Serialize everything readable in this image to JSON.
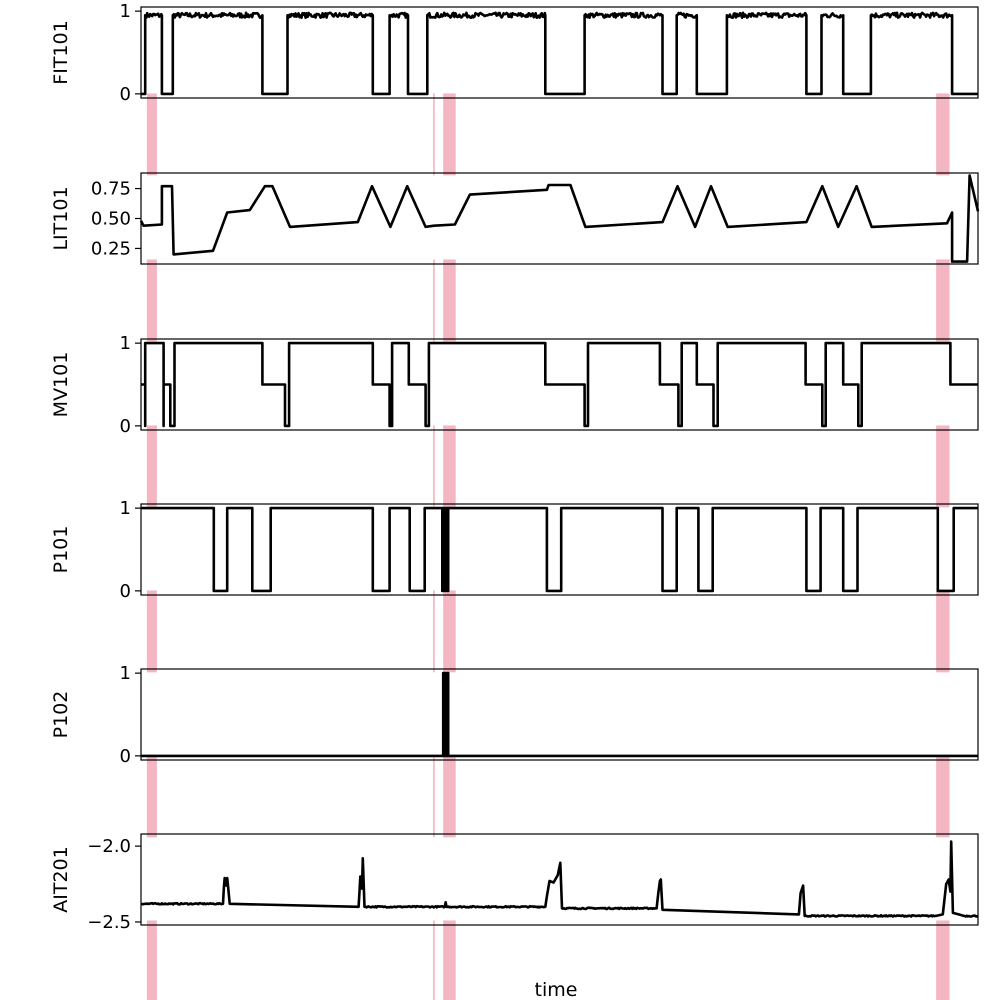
{
  "chart_data": {
    "type": "line",
    "xlabel": "time",
    "x_range": [
      0,
      1000
    ],
    "colors": {
      "line": "#000000",
      "anomaly": "#f4b6c2",
      "frame": "#000000"
    },
    "anomaly_windows": [
      [
        7,
        19
      ],
      [
        349,
        351
      ],
      [
        361,
        376
      ],
      [
        950,
        966
      ]
    ],
    "panels": [
      {
        "ylabel": "FIT101",
        "ylim": [
          -0.05,
          1.05
        ],
        "yticks": [
          0,
          1
        ],
        "ytick_labels": [
          "0",
          "1"
        ],
        "kind": "step",
        "noise": 0.03,
        "series": [
          [
            0,
            0
          ],
          [
            5,
            0
          ],
          [
            5,
            0.95
          ],
          [
            25,
            0.95
          ],
          [
            25,
            0
          ],
          [
            38,
            0
          ],
          [
            38,
            0.95
          ],
          [
            145,
            0.95
          ],
          [
            145,
            0
          ],
          [
            175,
            0
          ],
          [
            175,
            0.95
          ],
          [
            277,
            0.95
          ],
          [
            277,
            0
          ],
          [
            297,
            0
          ],
          [
            297,
            0.95
          ],
          [
            319,
            0.95
          ],
          [
            319,
            0
          ],
          [
            342,
            0
          ],
          [
            342,
            0.95
          ],
          [
            483,
            0.95
          ],
          [
            483,
            0
          ],
          [
            530,
            0
          ],
          [
            530,
            0.95
          ],
          [
            623,
            0.95
          ],
          [
            623,
            0
          ],
          [
            640,
            0
          ],
          [
            640,
            0.95
          ],
          [
            664,
            0.95
          ],
          [
            664,
            0
          ],
          [
            700,
            0
          ],
          [
            700,
            0.95
          ],
          [
            795,
            0.95
          ],
          [
            795,
            0
          ],
          [
            813,
            0
          ],
          [
            813,
            0.95
          ],
          [
            839,
            0.95
          ],
          [
            839,
            0
          ],
          [
            872,
            0
          ],
          [
            872,
            0.95
          ],
          [
            969,
            0.95
          ],
          [
            969,
            0
          ],
          [
            1000,
            0
          ]
        ]
      },
      {
        "ylabel": "LIT101",
        "ylim": [
          0.12,
          0.88
        ],
        "yticks": [
          0.25,
          0.5,
          0.75
        ],
        "ytick_labels": [
          "0.25",
          "0.50",
          "0.75"
        ],
        "kind": "line",
        "noise": 0,
        "series": [
          [
            0,
            0.48
          ],
          [
            3,
            0.44
          ],
          [
            25,
            0.45
          ],
          [
            25,
            0.77
          ],
          [
            37,
            0.77
          ],
          [
            39,
            0.2
          ],
          [
            86,
            0.23
          ],
          [
            103,
            0.55
          ],
          [
            130,
            0.57
          ],
          [
            148,
            0.77
          ],
          [
            157,
            0.77
          ],
          [
            178,
            0.43
          ],
          [
            259,
            0.47
          ],
          [
            276,
            0.77
          ],
          [
            298,
            0.43
          ],
          [
            318,
            0.77
          ],
          [
            340,
            0.43
          ],
          [
            350,
            0.44
          ],
          [
            375,
            0.45
          ],
          [
            393,
            0.7
          ],
          [
            485,
            0.74
          ],
          [
            487,
            0.78
          ],
          [
            513,
            0.78
          ],
          [
            531,
            0.43
          ],
          [
            623,
            0.47
          ],
          [
            641,
            0.77
          ],
          [
            662,
            0.43
          ],
          [
            681,
            0.77
          ],
          [
            701,
            0.43
          ],
          [
            795,
            0.47
          ],
          [
            814,
            0.77
          ],
          [
            833,
            0.43
          ],
          [
            855,
            0.77
          ],
          [
            873,
            0.43
          ],
          [
            963,
            0.46
          ],
          [
            969,
            0.55
          ],
          [
            969,
            0.14
          ],
          [
            987,
            0.14
          ],
          [
            990,
            0.86
          ],
          [
            1000,
            0.56
          ]
        ]
      },
      {
        "ylabel": "MV101",
        "ylim": [
          -0.05,
          1.05
        ],
        "yticks": [
          0,
          1
        ],
        "ytick_labels": [
          "0",
          "1"
        ],
        "kind": "step",
        "noise": 0,
        "series": [
          [
            0,
            0.5
          ],
          [
            5,
            0.5
          ],
          [
            5,
            0
          ],
          [
            5,
            1
          ],
          [
            27,
            1
          ],
          [
            27,
            0
          ],
          [
            27,
            0.5
          ],
          [
            35,
            0.5
          ],
          [
            35,
            0
          ],
          [
            40,
            0
          ],
          [
            40,
            1
          ],
          [
            145,
            1
          ],
          [
            145,
            0.5
          ],
          [
            172,
            0.5
          ],
          [
            172,
            0
          ],
          [
            177,
            0
          ],
          [
            177,
            1
          ],
          [
            277,
            1
          ],
          [
            277,
            0.5
          ],
          [
            297,
            0.5
          ],
          [
            297,
            0
          ],
          [
            300,
            0
          ],
          [
            300,
            1
          ],
          [
            320,
            1
          ],
          [
            320,
            0.5
          ],
          [
            340,
            0.5
          ],
          [
            340,
            0
          ],
          [
            344,
            0
          ],
          [
            344,
            1
          ],
          [
            483,
            1
          ],
          [
            483,
            0.5
          ],
          [
            530,
            0.5
          ],
          [
            530,
            0
          ],
          [
            534,
            0
          ],
          [
            534,
            1
          ],
          [
            620,
            1
          ],
          [
            620,
            0.5
          ],
          [
            642,
            0.5
          ],
          [
            642,
            0
          ],
          [
            646,
            0
          ],
          [
            646,
            1
          ],
          [
            664,
            1
          ],
          [
            664,
            0.5
          ],
          [
            684,
            0.5
          ],
          [
            684,
            0
          ],
          [
            689,
            0
          ],
          [
            689,
            1
          ],
          [
            794,
            1
          ],
          [
            794,
            0.5
          ],
          [
            814,
            0.5
          ],
          [
            814,
            0
          ],
          [
            818,
            0
          ],
          [
            818,
            1
          ],
          [
            839,
            1
          ],
          [
            839,
            0.5
          ],
          [
            857,
            0.5
          ],
          [
            857,
            0
          ],
          [
            861,
            0
          ],
          [
            861,
            1
          ],
          [
            967,
            1
          ],
          [
            967,
            0.5
          ],
          [
            1000,
            0.5
          ]
        ]
      },
      {
        "ylabel": "P101",
        "ylim": [
          -0.05,
          1.05
        ],
        "yticks": [
          0,
          1
        ],
        "ytick_labels": [
          "0",
          "1"
        ],
        "kind": "step",
        "noise": 0,
        "series": [
          [
            0,
            1
          ],
          [
            87,
            1
          ],
          [
            87,
            0
          ],
          [
            103,
            0
          ],
          [
            103,
            1
          ],
          [
            133,
            1
          ],
          [
            133,
            0
          ],
          [
            155,
            0
          ],
          [
            155,
            1
          ],
          [
            277,
            1
          ],
          [
            277,
            0
          ],
          [
            297,
            0
          ],
          [
            297,
            1
          ],
          [
            321,
            1
          ],
          [
            321,
            0
          ],
          [
            339,
            0
          ],
          [
            339,
            1
          ],
          [
            360,
            1
          ],
          [
            360,
            0
          ],
          [
            361,
            0
          ],
          [
            361,
            1
          ],
          [
            363,
            1
          ],
          [
            363,
            0
          ],
          [
            364,
            0
          ],
          [
            364,
            1
          ],
          [
            366,
            1
          ],
          [
            366,
            0
          ],
          [
            367,
            0
          ],
          [
            367,
            1
          ],
          [
            485,
            1
          ],
          [
            485,
            0
          ],
          [
            502,
            0
          ],
          [
            502,
            1
          ],
          [
            623,
            1
          ],
          [
            623,
            0
          ],
          [
            640,
            0
          ],
          [
            640,
            1
          ],
          [
            666,
            1
          ],
          [
            666,
            0
          ],
          [
            683,
            0
          ],
          [
            683,
            1
          ],
          [
            795,
            1
          ],
          [
            795,
            0
          ],
          [
            812,
            0
          ],
          [
            812,
            1
          ],
          [
            839,
            1
          ],
          [
            839,
            0
          ],
          [
            856,
            0
          ],
          [
            856,
            1
          ],
          [
            952,
            1
          ],
          [
            952,
            0
          ],
          [
            971,
            0
          ],
          [
            971,
            1
          ],
          [
            1000,
            1
          ]
        ]
      },
      {
        "ylabel": "P102",
        "ylim": [
          -0.05,
          1.05
        ],
        "yticks": [
          0,
          1
        ],
        "ytick_labels": [
          "0",
          "1"
        ],
        "kind": "step",
        "noise": 0,
        "series": [
          [
            0,
            0
          ],
          [
            361,
            0
          ],
          [
            361,
            1
          ],
          [
            362,
            1
          ],
          [
            362,
            0
          ],
          [
            363,
            0
          ],
          [
            363,
            1
          ],
          [
            364,
            1
          ],
          [
            364,
            0
          ],
          [
            366,
            0
          ],
          [
            366,
            1
          ],
          [
            367,
            1
          ],
          [
            367,
            0
          ],
          [
            1000,
            0
          ]
        ]
      },
      {
        "ylabel": "AIT201",
        "ylim": [
          -2.52,
          -1.92
        ],
        "yticks": [
          -2.0,
          -2.5
        ],
        "ytick_labels": [
          "−2.0",
          "−2.5"
        ],
        "kind": "line",
        "noise": 0.004,
        "series": [
          [
            0,
            -2.38
          ],
          [
            98,
            -2.38
          ],
          [
            99,
            -2.27
          ],
          [
            100,
            -2.21
          ],
          [
            102,
            -2.26
          ],
          [
            103,
            -2.21
          ],
          [
            104,
            -2.26
          ],
          [
            106,
            -2.38
          ],
          [
            260,
            -2.4
          ],
          [
            261,
            -2.3
          ],
          [
            262,
            -2.2
          ],
          [
            264,
            -2.28
          ],
          [
            265,
            -2.08
          ],
          [
            267,
            -2.4
          ],
          [
            363,
            -2.4
          ],
          [
            364,
            -2.37
          ],
          [
            365,
            -2.4
          ],
          [
            483,
            -2.4
          ],
          [
            485,
            -2.33
          ],
          [
            488,
            -2.23
          ],
          [
            493,
            -2.24
          ],
          [
            498,
            -2.19
          ],
          [
            501,
            -2.11
          ],
          [
            503,
            -2.41
          ],
          [
            616,
            -2.41
          ],
          [
            618,
            -2.31
          ],
          [
            620,
            -2.23
          ],
          [
            621,
            -2.22
          ],
          [
            623,
            -2.42
          ],
          [
            786,
            -2.45
          ],
          [
            788,
            -2.31
          ],
          [
            791,
            -2.26
          ],
          [
            793,
            -2.46
          ],
          [
            950,
            -2.46
          ],
          [
            958,
            -2.45
          ],
          [
            960,
            -2.35
          ],
          [
            962,
            -2.25
          ],
          [
            965,
            -2.22
          ],
          [
            967,
            -2.3
          ],
          [
            968,
            -1.97
          ],
          [
            970,
            -2.44
          ],
          [
            977,
            -2.45
          ],
          [
            983,
            -2.46
          ],
          [
            1000,
            -2.46
          ]
        ]
      }
    ]
  }
}
